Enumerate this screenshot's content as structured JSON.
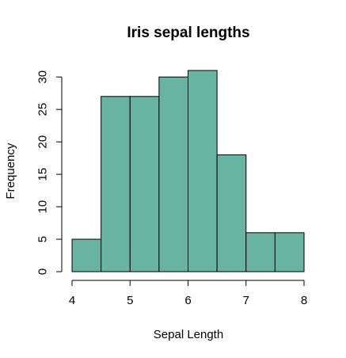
{
  "chart_data": {
    "type": "bar",
    "title": "Iris sepal lengths",
    "xlabel": "Sepal Length",
    "ylabel": "Frequency",
    "bins": [
      {
        "start": 4.0,
        "end": 4.5,
        "count": 5
      },
      {
        "start": 4.5,
        "end": 5.0,
        "count": 27
      },
      {
        "start": 5.0,
        "end": 5.5,
        "count": 27
      },
      {
        "start": 5.5,
        "end": 6.0,
        "count": 30
      },
      {
        "start": 6.0,
        "end": 6.5,
        "count": 31
      },
      {
        "start": 6.5,
        "end": 7.0,
        "count": 18
      },
      {
        "start": 7.0,
        "end": 7.5,
        "count": 6
      },
      {
        "start": 7.5,
        "end": 8.0,
        "count": 6
      }
    ],
    "xlim": [
      4,
      8
    ],
    "ylim": [
      0,
      31
    ],
    "x_ticks": [
      4,
      5,
      6,
      7,
      8
    ],
    "y_ticks": [
      0,
      5,
      10,
      15,
      20,
      25,
      30
    ],
    "bar_color": "#69b3a2",
    "grid": false
  }
}
